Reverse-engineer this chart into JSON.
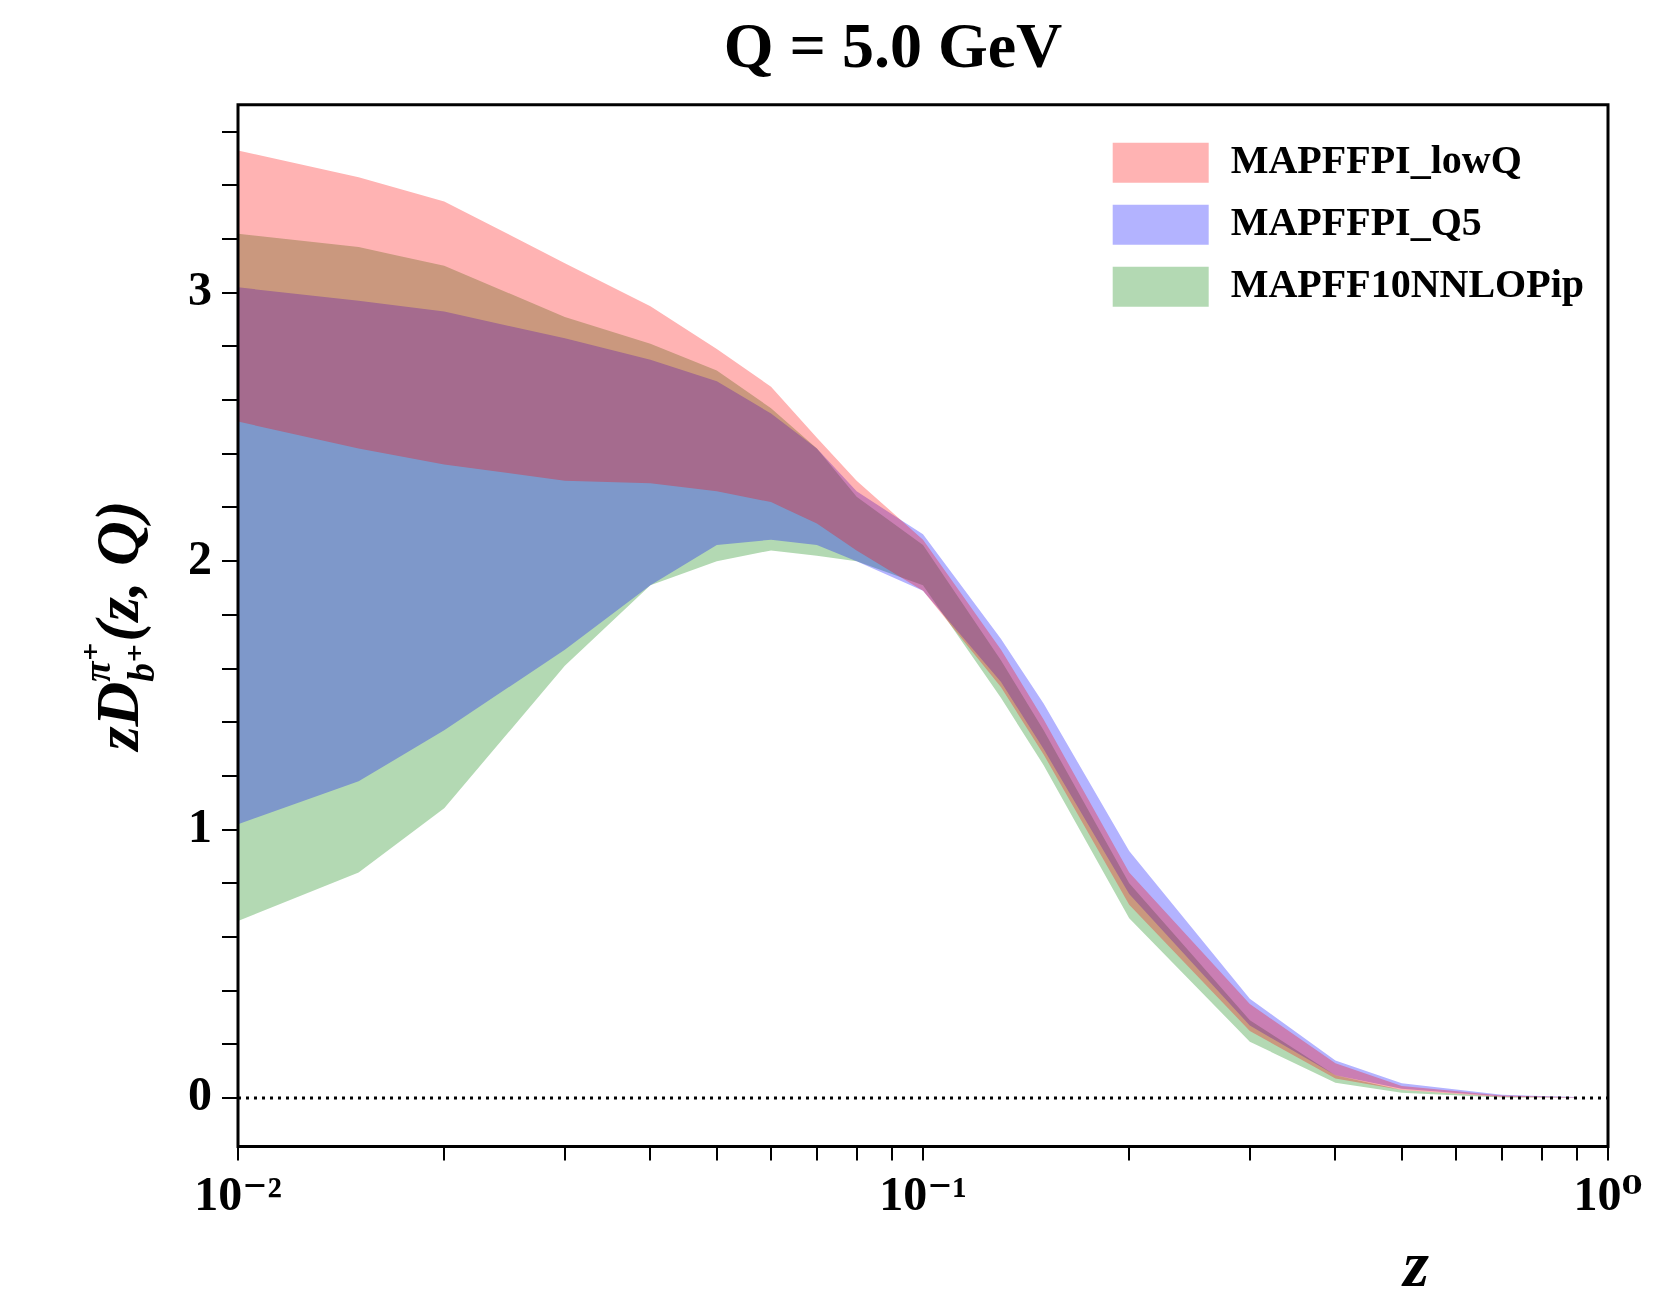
{
  "chart_data": {
    "type": "line",
    "title": "Q = 5.0 GeV",
    "xlabel": "z",
    "ylabel": "zD$^{π⁺}$$_{b⁺}$(z, Q)",
    "log": "x",
    "legend": "top right",
    "xlim": [
      0.01,
      1
    ],
    "ylim": [
      -0.18,
      3.7
    ],
    "xticks": [
      {
        "value": 0.01,
        "label": "10⁻²"
      },
      {
        "value": 0.02,
        "label": null
      },
      {
        "value": 0.03,
        "label": null
      },
      {
        "value": 0.04,
        "label": null
      },
      {
        "value": 0.05,
        "label": null
      },
      {
        "value": 0.06,
        "label": null
      },
      {
        "value": 0.07,
        "label": null
      },
      {
        "value": 0.08,
        "label": null
      },
      {
        "value": 0.09,
        "label": null
      },
      {
        "value": 0.1,
        "label": "10⁻¹"
      },
      {
        "value": 0.2,
        "label": null
      },
      {
        "value": 0.3,
        "label": null
      },
      {
        "value": 0.4,
        "label": null
      },
      {
        "value": 0.5,
        "label": null
      },
      {
        "value": 0.6,
        "label": null
      },
      {
        "value": 0.7,
        "label": null
      },
      {
        "value": 0.8,
        "label": null
      },
      {
        "value": 0.9,
        "label": null
      },
      {
        "value": 1,
        "label": "10⁰"
      }
    ],
    "yticks": [
      0,
      {
        "value": 0.2,
        "label": null
      },
      {
        "value": 0.4,
        "label": null
      },
      {
        "value": 0.6,
        "label": null
      },
      {
        "value": 0.8,
        "label": null
      },
      1,
      {
        "value": 1.2,
        "label": null
      },
      {
        "value": 1.4,
        "label": null
      },
      {
        "value": 1.6,
        "label": null
      },
      {
        "value": 1.8,
        "label": null
      },
      2,
      {
        "value": 2.2,
        "label": null
      },
      {
        "value": 2.4,
        "label": null
      },
      {
        "value": 2.6,
        "label": null
      },
      {
        "value": 2.8,
        "label": null
      },
      3,
      {
        "value": 3.2,
        "label": null
      },
      {
        "value": 3.4,
        "label": null
      },
      {
        "value": 3.6,
        "label": null
      }
    ],
    "ref_lines": [
      {
        "axis": "y",
        "value": 0,
        "line_style": "dotted",
        "color": "#000000"
      }
    ],
    "x": [
      0.01,
      0.015,
      0.02,
      0.03,
      0.04,
      0.05,
      0.06,
      0.07,
      0.08,
      0.1,
      0.13,
      0.15,
      0.2,
      0.3,
      0.4,
      0.5,
      0.7,
      0.9
    ],
    "series": [
      {
        "name": "MAPFFPI_lowQ",
        "color": "#ffb3b3",
        "values": [
          null,
          null,
          null,
          null,
          null,
          null,
          null,
          null,
          null,
          null,
          null,
          null,
          null,
          null,
          null,
          null,
          null,
          null
        ],
        "lower": [
          2.52,
          2.42,
          2.36,
          2.3,
          2.29,
          2.26,
          2.22,
          2.14,
          2.04,
          1.89,
          1.53,
          1.28,
          0.72,
          0.25,
          0.073,
          0.03,
          0.004,
          0.001
        ],
        "upper": [
          3.53,
          3.43,
          3.34,
          3.11,
          2.95,
          2.79,
          2.65,
          2.46,
          2.3,
          2.08,
          1.67,
          1.41,
          0.84,
          0.35,
          0.13,
          0.045,
          0.01,
          0.003
        ]
      },
      {
        "name": "MAPFFPI_Q5",
        "color": "#b3b3ff",
        "values": [
          null,
          null,
          null,
          null,
          null,
          null,
          null,
          null,
          null,
          null,
          null,
          null,
          null,
          null,
          null,
          null,
          null,
          null
        ],
        "lower": [
          1.02,
          1.18,
          1.37,
          1.67,
          1.91,
          2.06,
          2.08,
          2.06,
          2,
          1.89,
          1.55,
          1.3,
          0.76,
          0.27,
          0.085,
          0.035,
          0.006,
          0.001
        ],
        "upper": [
          3.02,
          2.97,
          2.93,
          2.83,
          2.75,
          2.67,
          2.55,
          2.42,
          2.26,
          2.1,
          1.71,
          1.47,
          0.92,
          0.37,
          0.14,
          0.055,
          0.012,
          0.004
        ]
      },
      {
        "name": "MAPFF10NNLOPip",
        "color": "#b3d9b3",
        "values": [
          null,
          null,
          null,
          null,
          null,
          null,
          null,
          null,
          null,
          null,
          null,
          null,
          null,
          null,
          null,
          null,
          null,
          null
        ],
        "lower": [
          0.66,
          0.84,
          1.08,
          1.61,
          1.91,
          2,
          2.04,
          2.02,
          2,
          1.91,
          1.49,
          1.24,
          0.67,
          0.21,
          0.057,
          0.02,
          0.002,
          0
        ],
        "upper": [
          3.22,
          3.17,
          3.1,
          2.91,
          2.81,
          2.71,
          2.57,
          2.42,
          2.24,
          2.06,
          1.63,
          1.37,
          0.8,
          0.29,
          0.085,
          0.03,
          0.005,
          0
        ]
      }
    ]
  }
}
